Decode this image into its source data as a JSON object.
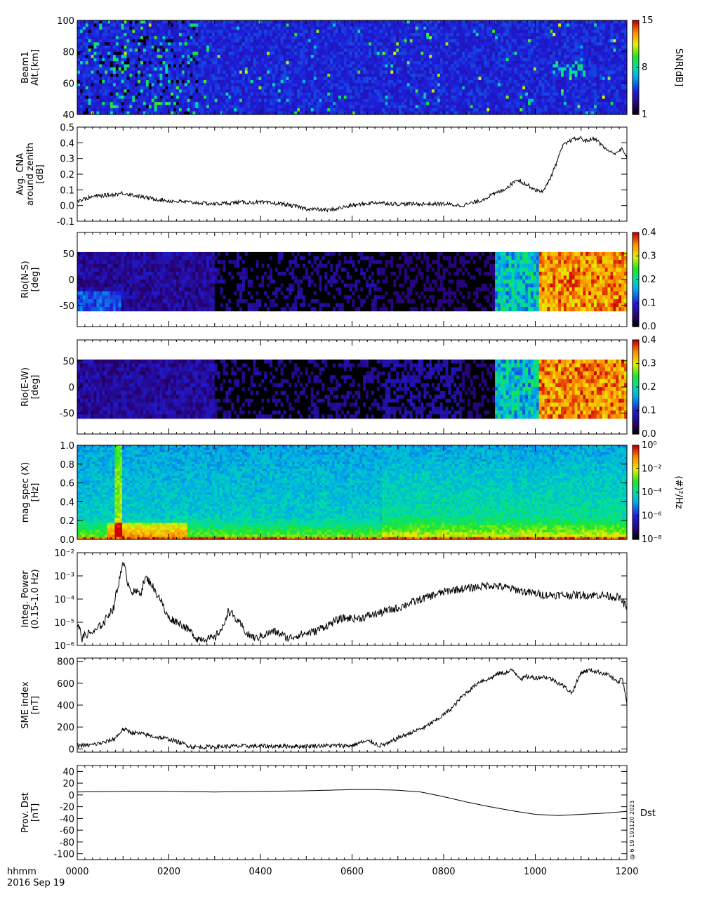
{
  "figure": {
    "time_label": "hhmm",
    "date_label": "2016 Sep 19",
    "stamp": "@ 6 19 193120 2023",
    "x_ticks": [
      "0000",
      "0200",
      "0400",
      "0600",
      "0800",
      "1000",
      "1200"
    ]
  },
  "chart_data": [
    {
      "type": "heatmap",
      "ylabel": [
        "Beam1",
        "Alt.[km]"
      ],
      "ylim": [
        40,
        100
      ],
      "y_ticks": [
        "40",
        "60",
        "80",
        "100"
      ],
      "colorbar": {
        "label": "SNR[dB]",
        "ticks": [
          "1",
          "8",
          "15"
        ],
        "range": [
          1,
          15
        ],
        "scale": "linear"
      }
    },
    {
      "type": "line",
      "ylabel": [
        "Avg. CNA",
        "around zenith",
        "[dB]"
      ],
      "ylim": [
        -0.1,
        0.5
      ],
      "y_ticks": [
        "-0.1",
        "0.0",
        "0.1",
        "0.2",
        "0.3",
        "0.4",
        "0.5"
      ],
      "x": [
        0,
        0.4,
        0.8,
        1.0,
        1.5,
        2.0,
        2.5,
        3.0,
        3.5,
        4.0,
        4.5,
        5.0,
        5.5,
        6.0,
        6.5,
        7.0,
        7.5,
        8.0,
        8.4,
        8.8,
        9.0,
        9.3,
        9.5,
        9.6,
        9.7,
        9.9,
        10.0,
        10.1,
        10.2,
        10.35,
        10.5,
        10.6,
        10.8,
        11.0,
        11.1,
        11.3,
        11.4,
        11.5,
        11.7,
        11.9,
        12.0
      ],
      "values": [
        0.03,
        0.06,
        0.07,
        0.08,
        0.05,
        0.03,
        0.02,
        0.01,
        0.02,
        0.02,
        0.01,
        -0.02,
        -0.03,
        0.0,
        0.02,
        0.01,
        0.01,
        0.01,
        0.0,
        0.03,
        0.06,
        0.1,
        0.14,
        0.17,
        0.15,
        0.12,
        0.1,
        0.09,
        0.1,
        0.19,
        0.3,
        0.38,
        0.42,
        0.43,
        0.41,
        0.43,
        0.4,
        0.37,
        0.33,
        0.36,
        0.3
      ]
    },
    {
      "type": "heatmap",
      "ylabel": [
        "Rio(N-S)",
        "[deg]"
      ],
      "ylim": [
        -90,
        90
      ],
      "y_ticks": [
        "-50",
        "0",
        "50"
      ],
      "colorbar": {
        "label": "",
        "ticks": [
          "0.0",
          "0.1",
          "0.2",
          "0.3",
          "0.4"
        ],
        "range": [
          0,
          0.4
        ],
        "scale": "linear"
      }
    },
    {
      "type": "heatmap",
      "ylabel": [
        "Rio(E-W)",
        "[deg]"
      ],
      "ylim": [
        -90,
        90
      ],
      "y_ticks": [
        "-50",
        "0",
        "50"
      ],
      "colorbar": {
        "label": "",
        "ticks": [
          "0.0",
          "0.1",
          "0.2",
          "0.3",
          "0.4"
        ],
        "range": [
          0,
          0.4
        ],
        "scale": "linear"
      }
    },
    {
      "type": "heatmap",
      "ylabel": [
        "mag spec (X)",
        "[Hz]"
      ],
      "ylim": [
        0,
        1.0
      ],
      "y_ticks": [
        "0.0",
        "0.2",
        "0.4",
        "0.6",
        "0.8",
        "1.0"
      ],
      "colorbar": {
        "label": "(#)²/Hz",
        "ticks": [
          "10⁻⁸",
          "10⁻⁶",
          "10⁻⁴",
          "10⁻²",
          "10⁰"
        ],
        "range": [
          -9,
          0
        ],
        "scale": "log"
      }
    },
    {
      "type": "line",
      "scale": "log",
      "ylabel": [
        "Integ. Power",
        "(0.15-1.0 Hz)"
      ],
      "ylim": [
        1e-06,
        0.01
      ],
      "y_ticks": [
        "10⁻⁶",
        "10⁻⁵",
        "10⁻⁴",
        "10⁻³",
        "10⁻²"
      ],
      "x": [
        0,
        0.1,
        0.2,
        0.4,
        0.6,
        0.8,
        0.9,
        1.0,
        1.1,
        1.2,
        1.4,
        1.5,
        1.7,
        1.9,
        2.0,
        2.2,
        2.4,
        2.6,
        2.8,
        3.0,
        3.2,
        3.3,
        3.5,
        3.7,
        3.9,
        4.1,
        4.3,
        4.6,
        4.9,
        5.2,
        5.5,
        5.8,
        6.2,
        6.6,
        7.0,
        7.4,
        7.8,
        8.2,
        8.6,
        9.0,
        9.4,
        9.8,
        10.2,
        10.6,
        11.0,
        11.4,
        11.8,
        12.0
      ],
      "values": [
        8e-06,
        2e-06,
        3e-06,
        4e-06,
        1e-05,
        4e-05,
        0.0003,
        0.003,
        0.0005,
        0.0002,
        0.0002,
        0.0008,
        0.0002,
        3e-05,
        1.5e-05,
        1e-05,
        5e-06,
        2e-06,
        2e-06,
        2e-06,
        6e-06,
        3e-05,
        1e-05,
        3e-06,
        2e-06,
        3e-06,
        4e-06,
        2e-06,
        3e-06,
        4e-06,
        8e-06,
        1.5e-05,
        1.5e-05,
        2.5e-05,
        4e-05,
        8e-05,
        0.00015,
        0.00025,
        0.0003,
        0.0004,
        0.0003,
        0.0002,
        0.00015,
        0.00015,
        0.00015,
        0.00015,
        0.00012,
        4e-05
      ]
    },
    {
      "type": "line",
      "ylabel": [
        "SME index",
        "[nT]"
      ],
      "ylim": [
        -30,
        830
      ],
      "y_ticks": [
        "0",
        "200",
        "400",
        "600",
        "800"
      ],
      "x": [
        0,
        0.3,
        0.6,
        0.8,
        0.9,
        1.0,
        1.2,
        1.5,
        1.7,
        2.0,
        2.3,
        2.5,
        2.7,
        3.0,
        3.5,
        4.0,
        4.5,
        5.0,
        5.3,
        5.5,
        5.8,
        6.0,
        6.2,
        6.4,
        6.6,
        6.8,
        7.0,
        7.3,
        7.6,
        7.9,
        8.2,
        8.4,
        8.6,
        8.8,
        9.0,
        9.2,
        9.4,
        9.5,
        9.6,
        9.7,
        9.8,
        10.0,
        10.2,
        10.4,
        10.6,
        10.8,
        11.0,
        11.2,
        11.4,
        11.6,
        11.8,
        11.9,
        12.0
      ],
      "values": [
        30,
        35,
        60,
        90,
        130,
        180,
        150,
        130,
        110,
        90,
        50,
        20,
        15,
        20,
        25,
        25,
        25,
        25,
        30,
        30,
        30,
        30,
        60,
        70,
        30,
        50,
        100,
        150,
        200,
        280,
        380,
        480,
        550,
        620,
        640,
        690,
        700,
        720,
        680,
        640,
        660,
        650,
        660,
        630,
        580,
        510,
        700,
        720,
        700,
        680,
        600,
        650,
        430
      ]
    },
    {
      "type": "line",
      "ylabel": [
        "Prov. Dst",
        "[nT]"
      ],
      "ylim": [
        -110,
        50
      ],
      "y_ticks": [
        "-100",
        "-80",
        "-60",
        "-40",
        "-20",
        "0",
        "20",
        "40"
      ],
      "series_label": "Dst",
      "x": [
        0,
        1,
        2,
        3,
        4,
        5,
        6,
        6.5,
        7,
        7.5,
        8,
        8.5,
        9,
        9.5,
        10,
        10.5,
        11,
        11.5,
        12
      ],
      "values": [
        5,
        6,
        6,
        5,
        6,
        7,
        9,
        9,
        8,
        5,
        -3,
        -12,
        -20,
        -27,
        -33,
        -35,
        -33,
        -31,
        -28
      ]
    }
  ]
}
